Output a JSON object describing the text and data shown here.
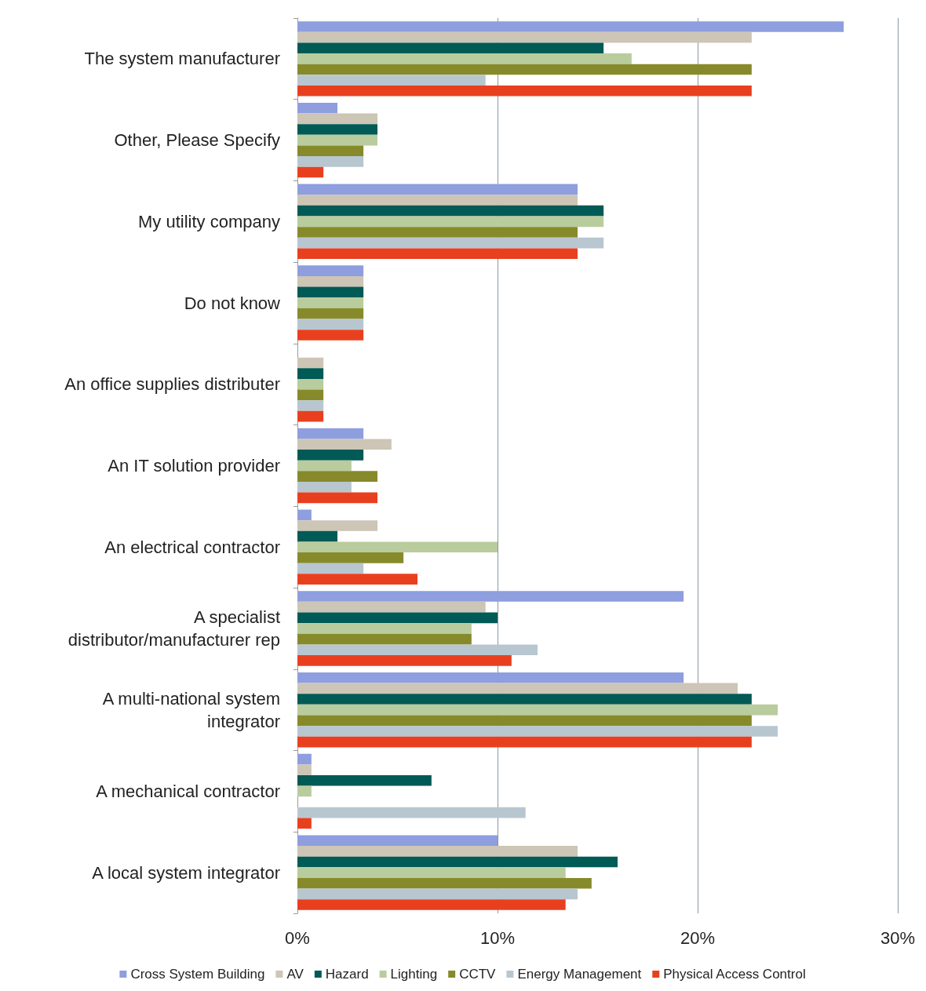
{
  "chart_data": {
    "type": "bar",
    "orientation": "horizontal",
    "categories": [
      "The system manufacturer",
      "Other, Please Specify",
      "My utility company",
      "Do not know",
      "An office supplies distributer",
      "An IT solution provider",
      "An electrical contractor",
      "A specialist\ndistributor/manufacturer rep",
      "A multi-national system\nintegrator",
      "A mechanical contractor",
      "A local system integrator"
    ],
    "series": [
      {
        "name": "Cross System Building",
        "color": "#8e9ede",
        "values": [
          27.3,
          2.0,
          14.0,
          3.3,
          0,
          3.3,
          0.7,
          19.3,
          19.3,
          0.7,
          10.0
        ]
      },
      {
        "name": "AV",
        "color": "#cdc5b5",
        "values": [
          22.7,
          4.0,
          14.0,
          3.3,
          1.3,
          4.7,
          4.0,
          9.4,
          22.0,
          0.7,
          14.0
        ]
      },
      {
        "name": "Hazard",
        "color": "#005a55",
        "values": [
          15.3,
          4.0,
          15.3,
          3.3,
          1.3,
          3.3,
          2.0,
          10.0,
          22.7,
          6.7,
          16.0
        ]
      },
      {
        "name": "Lighting",
        "color": "#b9cc9d",
        "values": [
          16.7,
          4.0,
          15.3,
          3.3,
          1.3,
          2.7,
          10.0,
          8.7,
          24.0,
          0.7,
          13.4
        ]
      },
      {
        "name": "CCTV",
        "color": "#878a2b",
        "values": [
          22.7,
          3.3,
          14.0,
          3.3,
          1.3,
          4.0,
          5.3,
          8.7,
          22.7,
          0,
          14.7
        ]
      },
      {
        "name": "Energy Management",
        "color": "#b8c6d0",
        "values": [
          9.4,
          3.3,
          15.3,
          3.3,
          1.3,
          2.7,
          3.3,
          12.0,
          24.0,
          11.4,
          14.0
        ]
      },
      {
        "name": "Physical Access Control",
        "color": "#e8401f",
        "values": [
          22.7,
          1.3,
          14.0,
          3.3,
          1.3,
          4.0,
          6.0,
          10.7,
          22.7,
          0.7,
          13.4
        ]
      }
    ],
    "xlim": [
      0,
      30
    ],
    "xticks": [
      {
        "value": 0,
        "label": "0%"
      },
      {
        "value": 10,
        "label": "10%"
      },
      {
        "value": 20,
        "label": "20%"
      },
      {
        "value": 30,
        "label": "30%"
      }
    ],
    "grid": "x",
    "legend": "bottom"
  }
}
